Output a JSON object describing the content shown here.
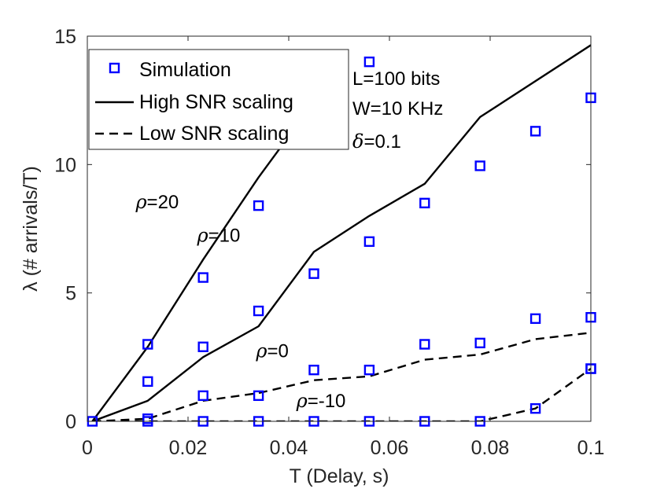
{
  "chart_data": {
    "type": "line",
    "xlabel": "T (Delay, s)",
    "ylabel": "λ (# arrivals/T)",
    "xlim": [
      0,
      0.1
    ],
    "ylim": [
      0,
      15
    ],
    "xticks": [
      0,
      0.02,
      0.04,
      0.06,
      0.08,
      0.1
    ],
    "xtick_labels": [
      "0",
      "0.02",
      "0.04",
      "0.06",
      "0.08",
      "0.1"
    ],
    "yticks": [
      0,
      5,
      10,
      15
    ],
    "ytick_labels": [
      "0",
      "5",
      "10",
      "15"
    ],
    "grid": false,
    "legend": {
      "placement": "top-left",
      "entries": [
        {
          "label": "Simulation",
          "style": "marker"
        },
        {
          "label": "High SNR scaling",
          "style": "solid"
        },
        {
          "label": "Low SNR scaling",
          "style": "dashed"
        }
      ]
    },
    "params": [
      "L=100 bits",
      "W=10 KHz"
    ],
    "delta_param": {
      "symbol": "δ",
      "value": "=0.1"
    },
    "series": [
      {
        "name": "High SNR ρ=20",
        "style": "solid",
        "x": [
          0.001,
          0.012,
          0.023,
          0.034,
          0.0415
        ],
        "y": [
          0,
          2.9,
          6.3,
          9.5,
          11.5
        ]
      },
      {
        "name": "High SNR ρ=10",
        "style": "solid",
        "x": [
          0.001,
          0.012,
          0.023,
          0.034,
          0.045,
          0.056,
          0.067,
          0.078,
          0.1
        ],
        "y": [
          0,
          0.8,
          2.5,
          3.7,
          6.6,
          8.0,
          9.25,
          11.85,
          14.65
        ]
      },
      {
        "name": "Low SNR ρ=0",
        "style": "dashed",
        "x": [
          0.001,
          0.012,
          0.023,
          0.034,
          0.045,
          0.056,
          0.067,
          0.078,
          0.089,
          0.1
        ],
        "y": [
          0,
          0.1,
          0.8,
          1.1,
          1.6,
          1.75,
          2.4,
          2.6,
          3.2,
          3.45
        ]
      },
      {
        "name": "Low SNR ρ=-10",
        "style": "dashed",
        "x": [
          0.001,
          0.012,
          0.023,
          0.034,
          0.045,
          0.056,
          0.067,
          0.078,
          0.089,
          0.1
        ],
        "y": [
          0,
          0,
          0,
          0,
          0,
          0,
          0,
          0,
          0.5,
          2.05
        ]
      },
      {
        "name": "Simulation",
        "style": "marker",
        "x": [
          0.001,
          0.012,
          0.012,
          0.012,
          0.012,
          0.023,
          0.023,
          0.023,
          0.023,
          0.034,
          0.034,
          0.034,
          0.034,
          0.045,
          0.045,
          0.045,
          0.056,
          0.056,
          0.056,
          0.056,
          0.067,
          0.067,
          0.067,
          0.078,
          0.078,
          0.078,
          0.089,
          0.089,
          0.089,
          0.1,
          0.1,
          0.1,
          0.1
        ],
        "y": [
          0,
          3.0,
          1.55,
          0.1,
          0,
          5.6,
          2.9,
          1.0,
          0,
          8.4,
          4.3,
          1.0,
          0,
          5.75,
          2.0,
          0,
          14.0,
          7.0,
          2.0,
          0,
          8.5,
          3.0,
          0,
          9.95,
          3.05,
          0,
          11.3,
          4.0,
          0.5,
          12.6,
          4.05,
          2.05,
          2.05
        ]
      }
    ],
    "annotations": [
      {
        "symbol": "ρ",
        "value": "=20",
        "x": 0.0096,
        "y": 8.3
      },
      {
        "symbol": "ρ",
        "value": "=10",
        "x": 0.0218,
        "y": 7.0
      },
      {
        "symbol": "ρ",
        "value": "=0",
        "x": 0.0335,
        "y": 2.5
      },
      {
        "symbol": "ρ",
        "value": "=-10",
        "x": 0.0415,
        "y": 0.55
      }
    ]
  }
}
